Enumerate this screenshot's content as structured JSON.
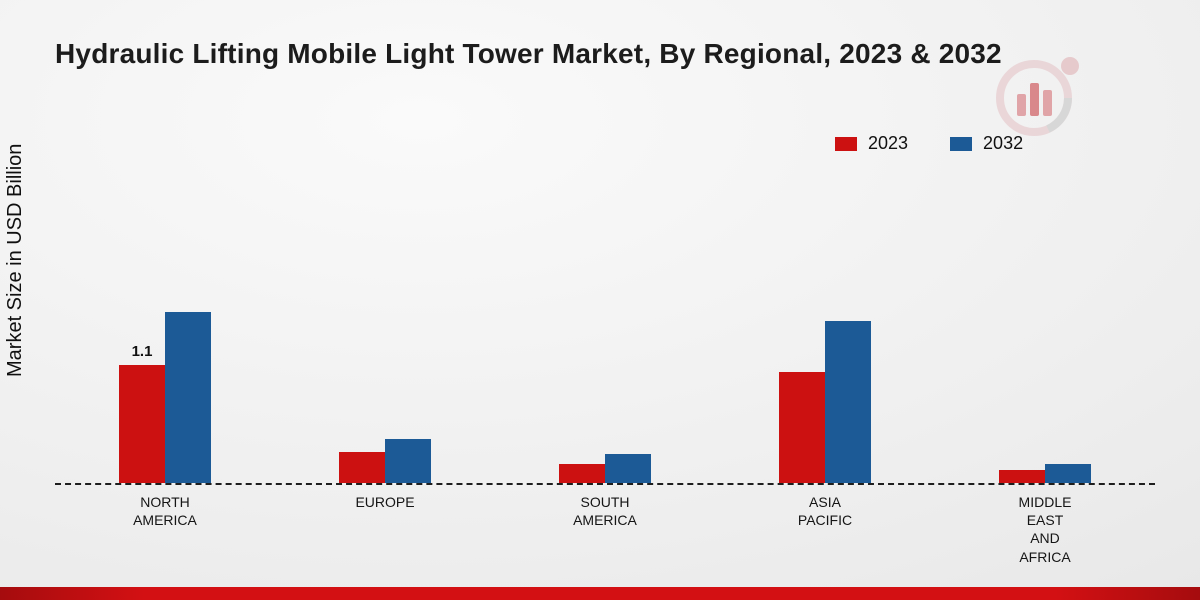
{
  "page": {
    "title": "Hydraulic Lifting Mobile Light Tower Market, By Regional, 2023 & 2032",
    "ylabel": "Market Size in USD Billion"
  },
  "colors": {
    "series_2023": "#cc1111",
    "series_2032": "#1c5a96",
    "footer_strip": "#d31013",
    "baseline": "#1e1e1e"
  },
  "branding": {
    "logo_icon": "mrfr-circular-bars-logo"
  },
  "chart_data": {
    "type": "bar",
    "title": "Hydraulic Lifting Mobile Light Tower Market, By Regional, 2023 & 2032",
    "xlabel": "",
    "ylabel": "Market Size in USD Billion",
    "categories": [
      "NORTH\nAMERICA",
      "EUROPE",
      "SOUTH\nAMERICA",
      "ASIA\nPACIFIC",
      "MIDDLE\nEAST\nAND\nAFRICA"
    ],
    "series": [
      {
        "name": "2023",
        "color": "#cc1111",
        "values": [
          1.1,
          0.29,
          0.18,
          1.04,
          0.12
        ],
        "labels": [
          "1.1",
          "",
          "",
          "",
          ""
        ]
      },
      {
        "name": "2032",
        "color": "#1c5a96",
        "values": [
          1.6,
          0.41,
          0.27,
          1.52,
          0.18
        ],
        "labels": [
          "",
          "",
          "",
          "",
          ""
        ]
      }
    ],
    "ylim": [
      0,
      1.9
    ],
    "grid": false,
    "baseline_style": "dashed",
    "legend_position": "top-right",
    "annotations": [
      "1.1"
    ]
  }
}
